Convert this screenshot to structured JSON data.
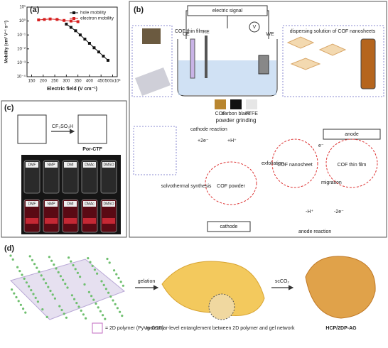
{
  "chart_data": {
    "type": "line",
    "panel": "(a)",
    "xlabel": "Electric field (V cm⁻¹)",
    "ylabel": "Mobility (cm² V⁻¹ s⁻¹)",
    "yscale": "log",
    "xlim": [
      130,
      520
    ],
    "ylim": [
      0.0001,
      10
    ],
    "xticks": [
      150,
      200,
      250,
      300,
      350,
      400,
      450,
      {
        "value": 500,
        "label": "500x10³"
      }
    ],
    "yticks": [
      {
        "value": 0.0001,
        "label": "10⁻⁴"
      },
      {
        "value": 0.001,
        "label": "10⁻³"
      },
      {
        "value": 0.01,
        "label": "10⁻²"
      },
      {
        "value": 0.1,
        "label": "10⁻¹"
      },
      {
        "value": 1,
        "label": "10⁰"
      },
      {
        "value": 10,
        "label": "10¹"
      }
    ],
    "legend": "upper right",
    "series": [
      {
        "name": "hole mobility",
        "color": "#111111",
        "marker": "square",
        "x": [
          300,
          320,
          340,
          360,
          380,
          400,
          420,
          440,
          460,
          480
        ],
        "values": [
          0.6,
          0.35,
          0.2,
          0.1,
          0.05,
          0.025,
          0.012,
          0.006,
          0.003,
          0.0015
        ]
      },
      {
        "name": "electron mobility",
        "color": "#d62020",
        "marker": "square",
        "x": [
          180,
          205,
          230,
          260,
          290,
          320,
          350
        ],
        "values": [
          1.2,
          1.3,
          1.4,
          1.3,
          1.1,
          1.0,
          0.9
        ]
      }
    ]
  },
  "panel_b": {
    "label": "(b)",
    "electric_signal": "electric signal",
    "ce": "CE",
    "re": "RE",
    "we": "WE",
    "v": "V",
    "cof_thin_film": "COF thin film",
    "dispersing": "dispersing solution of COF nanosheets",
    "cof": "COF",
    "carbon_black": "carbon black",
    "ptfe": "PTFE",
    "powder_grinding": "powder grinding",
    "cathode_reaction": "cathode reaction",
    "plus_2e": "+2e⁻",
    "plus_h": "+H⁺",
    "anode": "anode",
    "e_minus": "e⁻",
    "cof_thin_film_2": "COF thin film",
    "exfoliation": "exfoliation",
    "cof_nanosheet": "COF nanosheet",
    "migration": "migration",
    "cof_powder": "COF powder",
    "solvothermal": "solvothermal synthesis",
    "cathode": "cathode",
    "minus_h": "-H⁺",
    "minus_2e": "-2e⁻",
    "anode_reaction": "anode reaction"
  },
  "panel_c": {
    "label": "(c)",
    "reagent": "CF₃SO₃H",
    "product": "Por-CTF",
    "solvents_top": [
      "DMF",
      "NMP",
      "DMI",
      "DMAc",
      "DMSO"
    ],
    "solvents_bottom": [
      "DMF",
      "NMP",
      "DMI",
      "DMAc",
      "DMSO"
    ]
  },
  "panel_d": {
    "label": "(d)",
    "gelation": "gelation",
    "sc_co2": "scCO₂",
    "legend": "= 2D polymer (PyVg-COF)",
    "entanglement": "molecular-level entanglement between 2D polymer and gel network",
    "product": "HCP/2DP-AG"
  }
}
